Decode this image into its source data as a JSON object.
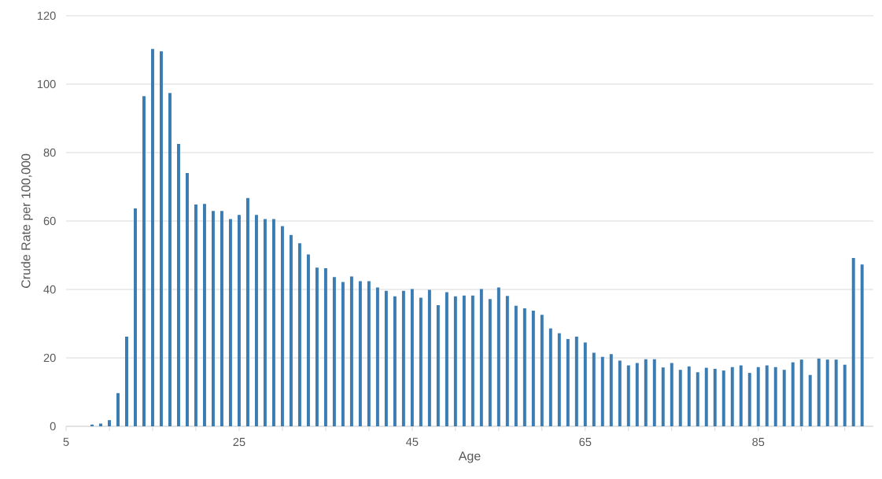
{
  "chart_data": {
    "type": "bar",
    "xlabel": "Age",
    "ylabel": "Crude Rate per 100,000",
    "x": [
      8,
      9,
      10,
      11,
      12,
      13,
      14,
      15,
      16,
      17,
      18,
      19,
      20,
      21,
      22,
      23,
      24,
      25,
      26,
      27,
      28,
      29,
      30,
      31,
      32,
      33,
      34,
      35,
      36,
      37,
      38,
      39,
      40,
      41,
      42,
      43,
      44,
      45,
      46,
      47,
      48,
      49,
      50,
      51,
      52,
      53,
      54,
      55,
      56,
      57,
      58,
      59,
      60,
      61,
      62,
      63,
      64,
      65,
      66,
      67,
      68,
      69,
      70,
      71,
      72,
      73,
      74,
      75,
      76,
      77,
      78,
      79,
      80,
      81,
      82,
      83,
      84,
      85,
      86,
      87,
      88,
      89,
      90,
      91,
      92,
      93,
      94,
      95,
      96,
      97
    ],
    "values": [
      0.5,
      0.8,
      1.8,
      9.7,
      26.2,
      63.7,
      96.5,
      110.3,
      109.6,
      97.4,
      82.5,
      74.0,
      64.8,
      65.0,
      62.9,
      62.9,
      60.6,
      61.8,
      66.7,
      61.8,
      60.6,
      60.6,
      58.5,
      55.9,
      53.5,
      50.2,
      46.4,
      46.2,
      43.6,
      42.2,
      43.8,
      42.4,
      42.4,
      40.6,
      39.6,
      38.0,
      39.6,
      40.1,
      37.6,
      39.9,
      35.4,
      39.2,
      38.0,
      38.2,
      38.2,
      40.1,
      37.2,
      40.6,
      38.1,
      35.2,
      34.5,
      33.8,
      32.6,
      28.6,
      27.2,
      25.5,
      26.2,
      24.5,
      21.5,
      20.3,
      21.1,
      19.2,
      17.8,
      18.5,
      19.6,
      19.6,
      17.2,
      18.5,
      16.5,
      17.5,
      15.8,
      17.1,
      16.8,
      16.3,
      17.3,
      17.8,
      15.6,
      17.3,
      17.8,
      17.3,
      16.5,
      18.7,
      19.5,
      15.0,
      19.8,
      19.5,
      19.5,
      18.0,
      49.2,
      47.3
    ],
    "color": "#3b7db3",
    "xlim": [
      5,
      98.3
    ],
    "xticks": [
      5,
      {
        "value": 10,
        "label": null
      },
      {
        "value": 15,
        "label": null
      },
      {
        "value": 20,
        "label": null
      },
      25,
      {
        "value": 30,
        "label": null
      },
      {
        "value": 35,
        "label": null
      },
      {
        "value": 40,
        "label": null
      },
      45,
      {
        "value": 50,
        "label": null
      },
      {
        "value": 55,
        "label": null
      },
      {
        "value": 60,
        "label": null
      },
      65,
      {
        "value": 70,
        "label": null
      },
      {
        "value": 75,
        "label": null
      },
      {
        "value": 80,
        "label": null
      },
      85,
      {
        "value": 90,
        "label": null
      },
      {
        "value": 95,
        "label": null
      }
    ],
    "ylim": [
      0,
      120
    ],
    "yticks": [
      0,
      20,
      40,
      60,
      80,
      100,
      120
    ],
    "grid": "y"
  }
}
